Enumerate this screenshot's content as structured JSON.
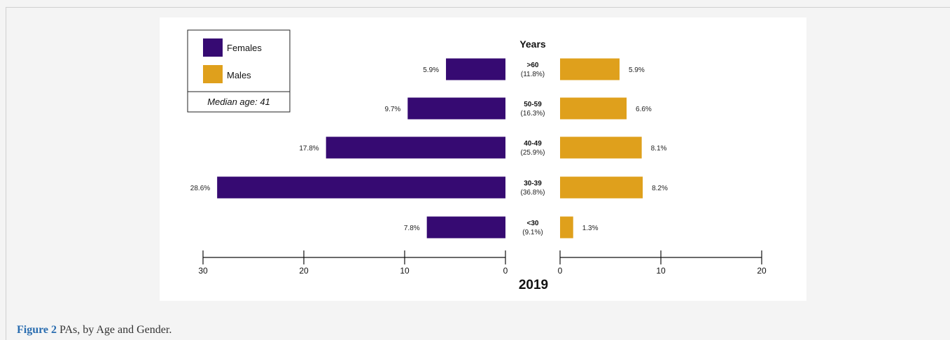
{
  "caption": {
    "label": "Figure 2",
    "text": "PAs, by Age and Gender."
  },
  "legend": {
    "items": [
      {
        "label": "Females",
        "color": "#360a72"
      },
      {
        "label": "Males",
        "color": "#dfa01c"
      }
    ],
    "note": "Median age: 41"
  },
  "chart_data": {
    "type": "bar",
    "orientation": "horizontal-pyramid",
    "center_header": "Years",
    "xlabel": "2019",
    "categories": [
      ">60",
      "50-59",
      "40-49",
      "30-39",
      "<30"
    ],
    "category_totals": [
      "(11.8%)",
      "(16.3%)",
      "(25.9%)",
      "(36.8%)",
      "(9.1%)"
    ],
    "series": [
      {
        "name": "Females",
        "color": "#360a72",
        "values": [
          5.9,
          9.7,
          17.8,
          28.6,
          7.8
        ],
        "labels": [
          "5.9%",
          "9.7%",
          "17.8%",
          "28.6%",
          "7.8%"
        ]
      },
      {
        "name": "Males",
        "color": "#dfa01c",
        "values": [
          5.9,
          6.6,
          8.1,
          8.2,
          1.3
        ],
        "labels": [
          "5.9%",
          "6.6%",
          "8.1%",
          "8.2%",
          "1.3%"
        ]
      }
    ],
    "females_axis": {
      "range": [
        0,
        30
      ],
      "ticks": [
        30,
        20,
        10,
        0
      ],
      "tick_labels": [
        "30",
        "20",
        "10",
        "0"
      ]
    },
    "males_axis": {
      "range": [
        0,
        20
      ],
      "ticks": [
        0,
        10,
        20
      ],
      "tick_labels": [
        "0",
        "10",
        "20"
      ]
    }
  }
}
